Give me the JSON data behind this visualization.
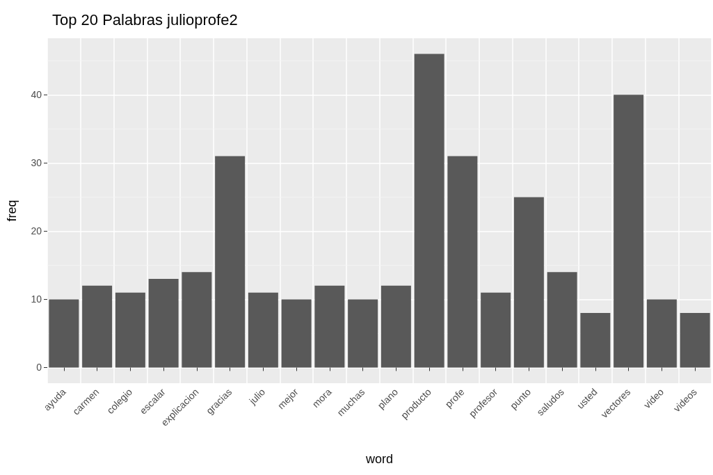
{
  "chart_data": {
    "type": "bar",
    "title": "Top 20 Palabras julioprofe2",
    "xlabel": "word",
    "ylabel": "freq",
    "categories": [
      "ayuda",
      "carmen",
      "colegio",
      "escalar",
      "explicacion",
      "gracias",
      "julio",
      "mejor",
      "mora",
      "muchas",
      "plano",
      "producto",
      "profe",
      "profesor",
      "punto",
      "saludos",
      "usted",
      "vectores",
      "video",
      "videos"
    ],
    "values": [
      10,
      12,
      11,
      13,
      14,
      31,
      11,
      10,
      12,
      10,
      12,
      46,
      31,
      11,
      25,
      14,
      8,
      40,
      10,
      8
    ],
    "color": "#595959",
    "ylim": [
      -2.3,
      48.3
    ],
    "yticks": [
      0,
      10,
      20,
      30,
      40
    ],
    "grid": true
  }
}
